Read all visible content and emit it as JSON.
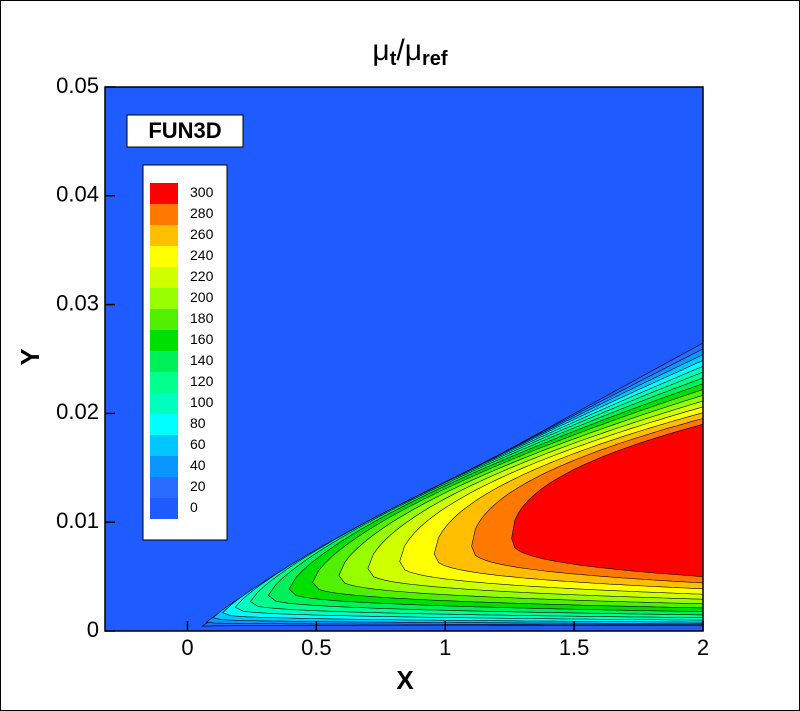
{
  "chart_data": {
    "type": "contour",
    "title": [
      {
        "text": "μ"
      },
      {
        "text": "t",
        "sub": true
      },
      {
        "text": "/μ"
      },
      {
        "text": "ref",
        "sub": true
      }
    ],
    "annotation": "FUN3D",
    "x_label": "X",
    "y_label": "Y",
    "xlim": [
      -0.32,
      2
    ],
    "ylim": [
      0,
      0.05
    ],
    "xticks": [
      0,
      0.5,
      1,
      1.5,
      2
    ],
    "yticks": [
      0,
      0.01,
      0.02,
      0.03,
      0.04,
      0.05
    ],
    "levels": [
      0,
      20,
      40,
      60,
      80,
      100,
      120,
      140,
      160,
      180,
      200,
      220,
      240,
      260,
      280,
      300
    ],
    "colors": [
      "#1e5cff",
      "#2a6cff",
      "#0a96ff",
      "#00c8ff",
      "#00ffff",
      "#00ffbe",
      "#00ff8c",
      "#00f05a",
      "#00e000",
      "#50f000",
      "#98ff00",
      "#d0ff00",
      "#ffff00",
      "#ffbe00",
      "#ff7800",
      "#ff0000"
    ]
  }
}
